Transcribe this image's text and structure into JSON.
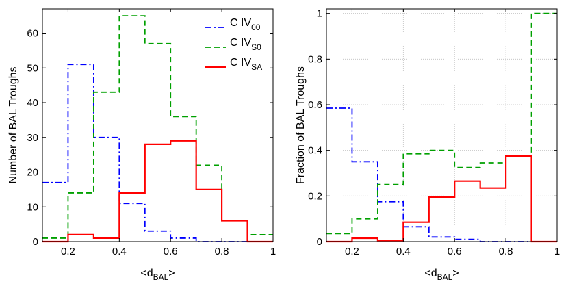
{
  "chart_data": [
    {
      "type": "line",
      "title": "",
      "xlabel_main": "<d",
      "xlabel_sub": "BAL",
      "xlabel_end": ">",
      "ylabel": "Number of BAL Troughs",
      "xlim": [
        0.1,
        1.0
      ],
      "ylim": [
        0,
        67
      ],
      "xticks": [
        "0.2",
        "0.4",
        "0.6",
        "0.8",
        "1"
      ],
      "yticks": [
        "0",
        "10",
        "20",
        "30",
        "40",
        "50",
        "60"
      ],
      "bin_edges": [
        0.1,
        0.2,
        0.3,
        0.4,
        0.5,
        0.6,
        0.7,
        0.8,
        0.9,
        1.0
      ],
      "grid": false,
      "legend_position": "top-right",
      "series": [
        {
          "name": "C IV",
          "sub": "00",
          "style": "dash-dot",
          "color": "#0000ff",
          "values": [
            17,
            51,
            30,
            11,
            3,
            1,
            0,
            0,
            0
          ]
        },
        {
          "name": "C IV",
          "sub": "S0",
          "style": "dashed",
          "color": "#00a000",
          "values": [
            1,
            14,
            43,
            65,
            57,
            36,
            22,
            6,
            2
          ]
        },
        {
          "name": "C IV",
          "sub": "SA",
          "style": "solid",
          "color": "#ff0000",
          "values": [
            0,
            2,
            1,
            14,
            28,
            29,
            15,
            6,
            0
          ]
        }
      ]
    },
    {
      "type": "line",
      "title": "",
      "xlabel_main": "<d",
      "xlabel_sub": "BAL",
      "xlabel_end": ">",
      "ylabel": "Fraction of BAL Troughs",
      "xlim": [
        0.1,
        1.0
      ],
      "ylim": [
        0,
        1.02
      ],
      "xticks": [
        "0.2",
        "0.4",
        "0.6",
        "0.8",
        "1"
      ],
      "yticks": [
        "0",
        "0.2",
        "0.4",
        "0.6",
        "0.8",
        "1"
      ],
      "bin_edges": [
        0.1,
        0.2,
        0.3,
        0.4,
        0.5,
        0.6,
        0.7,
        0.8,
        0.9,
        1.0
      ],
      "grid": true,
      "series": [
        {
          "name": "C IV",
          "sub": "00",
          "style": "dash-dot",
          "color": "#0000ff",
          "values": [
            0.585,
            0.35,
            0.175,
            0.065,
            0.02,
            0.01,
            0,
            0,
            0
          ]
        },
        {
          "name": "C IV",
          "sub": "S0",
          "style": "dashed",
          "color": "#00a000",
          "values": [
            0.035,
            0.1,
            0.25,
            0.385,
            0.4,
            0.325,
            0.345,
            0.375,
            1.0
          ]
        },
        {
          "name": "C IV",
          "sub": "SA",
          "style": "solid",
          "color": "#ff0000",
          "values": [
            0,
            0.015,
            0.005,
            0.085,
            0.195,
            0.265,
            0.235,
            0.375,
            0
          ]
        }
      ]
    }
  ]
}
